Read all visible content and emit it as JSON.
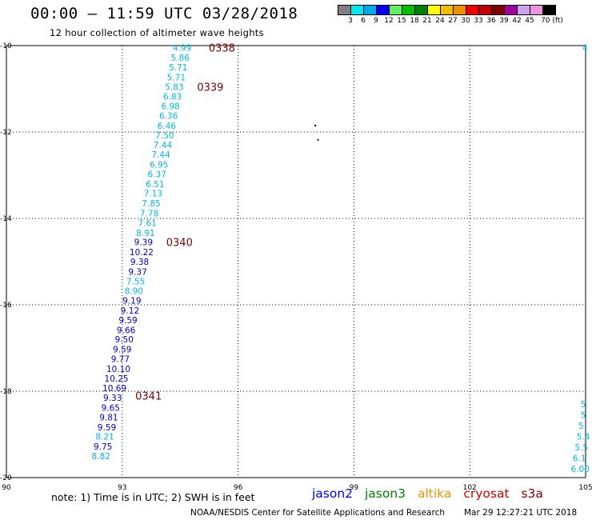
{
  "header": {
    "title": "00:00 – 11:59 UTC 03/28/2018",
    "subtitle": "12 hour collection of altimeter wave heights"
  },
  "color_scale": {
    "labels": [
      "3",
      "6",
      "9",
      "12",
      "15",
      "18",
      "21",
      "24",
      "27",
      "30",
      "33",
      "36",
      "39",
      "42",
      "45",
      "70 (ft)"
    ],
    "colors": [
      "#808080",
      "#00e8f0",
      "#00a8f0",
      "#0000f0",
      "#60f060",
      "#00c000",
      "#008000",
      "#ffff00",
      "#f0c000",
      "#f09000",
      "#f00000",
      "#c00000",
      "#800000",
      "#a000a0",
      "#d0a0f0",
      "#f090e0",
      "#000000"
    ]
  },
  "footer": {
    "note": "note: 1) Time is in UTC; 2) SWH is in feet",
    "satellites": [
      {
        "name": "jason2",
        "color": "#0000f0"
      },
      {
        "name": "jason3",
        "color": "#008000"
      },
      {
        "name": "altika",
        "color": "#f09000"
      },
      {
        "name": "cryosat",
        "color": "#d00000"
      },
      {
        "name": "s3a",
        "color": "#800000"
      }
    ],
    "credit": "NOAA/NESDIS Center for Satellite Applications and Research",
    "timestamp": "Mar 29 12:27:21 UTC 2018"
  },
  "chart_data": {
    "type": "scatter",
    "title": "00:00 – 11:59 UTC 03/28/2018",
    "subtitle": "12 hour collection of altimeter wave heights",
    "xlabel": "",
    "ylabel": "",
    "xlim": [
      90,
      105
    ],
    "ylim": [
      -20,
      -10
    ],
    "x_ticks": [
      "90",
      "93",
      "96",
      "99",
      "102",
      "105"
    ],
    "y_ticks": [
      "-10",
      "-12",
      "-14",
      "-16",
      "-18",
      "-20"
    ],
    "grid": true,
    "colors": {
      "cyan": "#00b8e0",
      "blue": "#0000c8",
      "time": "#800000"
    },
    "time_labels": [
      {
        "text": "0338",
        "lon": 94.7,
        "lat": -10.05
      },
      {
        "text": "0339",
        "lon": 94.4,
        "lat": -10.95
      },
      {
        "text": "0340",
        "lon": 93.6,
        "lat": -14.55
      },
      {
        "text": "0341",
        "lon": 92.8,
        "lat": -18.1
      }
    ],
    "points": [
      {
        "value": "4.99",
        "lon": 94.55,
        "lat": -10.05,
        "color": "cyan"
      },
      {
        "value": "5.86",
        "lon": 94.5,
        "lat": -10.28,
        "color": "cyan"
      },
      {
        "value": "5.71",
        "lon": 94.45,
        "lat": -10.5,
        "color": "cyan"
      },
      {
        "value": "5.71",
        "lon": 94.4,
        "lat": -10.73,
        "color": "cyan"
      },
      {
        "value": "5.83",
        "lon": 94.35,
        "lat": -10.95,
        "color": "cyan"
      },
      {
        "value": "6.83",
        "lon": 94.3,
        "lat": -11.18,
        "color": "cyan"
      },
      {
        "value": "6.98",
        "lon": 94.25,
        "lat": -11.4,
        "color": "cyan"
      },
      {
        "value": "6.36",
        "lon": 94.2,
        "lat": -11.62,
        "color": "cyan"
      },
      {
        "value": "6.46",
        "lon": 94.15,
        "lat": -11.85,
        "color": "cyan"
      },
      {
        "value": "7.50",
        "lon": 94.1,
        "lat": -12.07,
        "color": "cyan"
      },
      {
        "value": "7.44",
        "lon": 94.05,
        "lat": -12.3,
        "color": "cyan"
      },
      {
        "value": "7.44",
        "lon": 94.0,
        "lat": -12.52,
        "color": "cyan"
      },
      {
        "value": "6.95",
        "lon": 93.95,
        "lat": -12.75,
        "color": "cyan"
      },
      {
        "value": "6.37",
        "lon": 93.9,
        "lat": -12.97,
        "color": "cyan"
      },
      {
        "value": "6.51",
        "lon": 93.85,
        "lat": -13.2,
        "color": "cyan"
      },
      {
        "value": "7.13",
        "lon": 93.8,
        "lat": -13.42,
        "color": "cyan"
      },
      {
        "value": "7.85",
        "lon": 93.75,
        "lat": -13.65,
        "color": "cyan"
      },
      {
        "value": "7.78",
        "lon": 93.7,
        "lat": -13.88,
        "color": "cyan"
      },
      {
        "value": "7.61",
        "lon": 93.65,
        "lat": -14.1,
        "color": "cyan"
      },
      {
        "value": "8.91",
        "lon": 93.6,
        "lat": -14.33,
        "color": "cyan"
      },
      {
        "value": "9.39",
        "lon": 93.55,
        "lat": -14.55,
        "color": "blue"
      },
      {
        "value": "10.22",
        "lon": 93.5,
        "lat": -14.78,
        "color": "blue"
      },
      {
        "value": "9.38",
        "lon": 93.45,
        "lat": -15.0,
        "color": "blue"
      },
      {
        "value": "9.37",
        "lon": 93.4,
        "lat": -15.23,
        "color": "blue"
      },
      {
        "value": "7.55",
        "lon": 93.35,
        "lat": -15.45,
        "color": "cyan"
      },
      {
        "value": "8.90",
        "lon": 93.3,
        "lat": -15.68,
        "color": "cyan"
      },
      {
        "value": "9.19",
        "lon": 93.25,
        "lat": -15.9,
        "color": "blue"
      },
      {
        "value": "9.12",
        "lon": 93.2,
        "lat": -16.13,
        "color": "blue"
      },
      {
        "value": "9.59",
        "lon": 93.15,
        "lat": -16.35,
        "color": "blue"
      },
      {
        "value": "9.66",
        "lon": 93.1,
        "lat": -16.58,
        "color": "blue"
      },
      {
        "value": "9.50",
        "lon": 93.05,
        "lat": -16.8,
        "color": "blue"
      },
      {
        "value": "9.59",
        "lon": 93.0,
        "lat": -17.03,
        "color": "blue"
      },
      {
        "value": "9.77",
        "lon": 92.95,
        "lat": -17.25,
        "color": "blue"
      },
      {
        "value": "10.10",
        "lon": 92.9,
        "lat": -17.48,
        "color": "blue"
      },
      {
        "value": "10.25",
        "lon": 92.85,
        "lat": -17.7,
        "color": "blue"
      },
      {
        "value": "10.69",
        "lon": 92.8,
        "lat": -17.93,
        "color": "blue"
      },
      {
        "value": "9.33",
        "lon": 92.75,
        "lat": -18.15,
        "color": "blue"
      },
      {
        "value": "9.65",
        "lon": 92.7,
        "lat": -18.38,
        "color": "blue"
      },
      {
        "value": "9.81",
        "lon": 92.65,
        "lat": -18.6,
        "color": "blue"
      },
      {
        "value": "9.59",
        "lon": 92.6,
        "lat": -18.83,
        "color": "blue"
      },
      {
        "value": "8.21",
        "lon": 92.55,
        "lat": -19.05,
        "color": "cyan"
      },
      {
        "value": "9.75",
        "lon": 92.5,
        "lat": -19.28,
        "color": "blue"
      },
      {
        "value": "8.82",
        "lon": 92.45,
        "lat": -19.5,
        "color": "cyan"
      }
    ],
    "edge_labels": [
      {
        "value": "4",
        "lon": 105.0,
        "lat": -10.05,
        "color": "cyan"
      },
      {
        "value": "5",
        "lon": 104.95,
        "lat": -18.3,
        "color": "cyan"
      },
      {
        "value": "5",
        "lon": 104.95,
        "lat": -18.55,
        "color": "cyan"
      },
      {
        "value": "5.",
        "lon": 104.9,
        "lat": -18.8,
        "color": "cyan"
      },
      {
        "value": "5.4",
        "lon": 104.85,
        "lat": -19.05,
        "color": "cyan"
      },
      {
        "value": "5.5",
        "lon": 104.8,
        "lat": -19.3,
        "color": "cyan"
      },
      {
        "value": "6.1",
        "lon": 104.75,
        "lat": -19.55,
        "color": "cyan"
      },
      {
        "value": "6.00",
        "lon": 104.7,
        "lat": -19.8,
        "color": "cyan"
      }
    ],
    "dots": [
      {
        "lon": 98.0,
        "lat": -11.85
      },
      {
        "lon": 98.07,
        "lat": -12.18
      }
    ]
  }
}
